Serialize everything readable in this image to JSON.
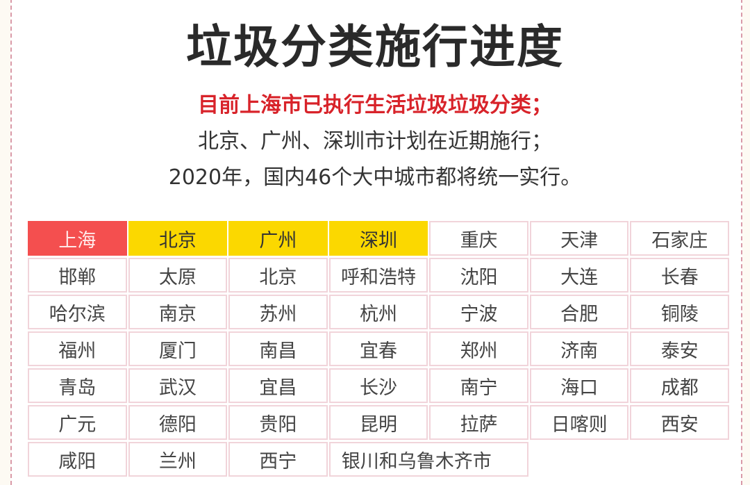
{
  "title": "垃圾分类施行进度",
  "lines": [
    "目前上海市已执行生活垃圾垃圾分类；",
    "北京、广州、深圳市计划在近期施行；",
    "2020年，国内46个大中城市都将统一实行。"
  ],
  "colors": {
    "implemented": "#f44f4f",
    "planned": "#fbd800",
    "accent_text": "#d8232a"
  },
  "cities": [
    {
      "name": "上海",
      "status": "implemented"
    },
    {
      "name": "北京",
      "status": "planned"
    },
    {
      "name": "广州",
      "status": "planned"
    },
    {
      "name": "深圳",
      "status": "planned"
    },
    {
      "name": "重庆"
    },
    {
      "name": "天津"
    },
    {
      "name": "石家庄"
    },
    {
      "name": "邯郸"
    },
    {
      "name": "太原"
    },
    {
      "name": "北京"
    },
    {
      "name": "呼和浩特"
    },
    {
      "name": "沈阳"
    },
    {
      "name": "大连"
    },
    {
      "name": "长春"
    },
    {
      "name": "哈尔滨"
    },
    {
      "name": "南京"
    },
    {
      "name": "苏州"
    },
    {
      "name": "杭州"
    },
    {
      "name": "宁波"
    },
    {
      "name": "合肥"
    },
    {
      "name": "铜陵"
    },
    {
      "name": "福州"
    },
    {
      "name": "厦门"
    },
    {
      "name": "南昌"
    },
    {
      "name": "宜春"
    },
    {
      "name": "郑州"
    },
    {
      "name": "济南"
    },
    {
      "name": "泰安"
    },
    {
      "name": "青岛"
    },
    {
      "name": "武汉"
    },
    {
      "name": "宜昌"
    },
    {
      "name": "长沙"
    },
    {
      "name": "南宁"
    },
    {
      "name": "海口"
    },
    {
      "name": "成都"
    },
    {
      "name": "广元"
    },
    {
      "name": "德阳"
    },
    {
      "name": "贵阳"
    },
    {
      "name": "昆明"
    },
    {
      "name": "拉萨"
    },
    {
      "name": "日喀则"
    },
    {
      "name": "西安"
    },
    {
      "name": "咸阳"
    },
    {
      "name": "兰州"
    },
    {
      "name": "西宁"
    },
    {
      "name": "银川和乌鲁木齐市",
      "span": 2
    }
  ]
}
